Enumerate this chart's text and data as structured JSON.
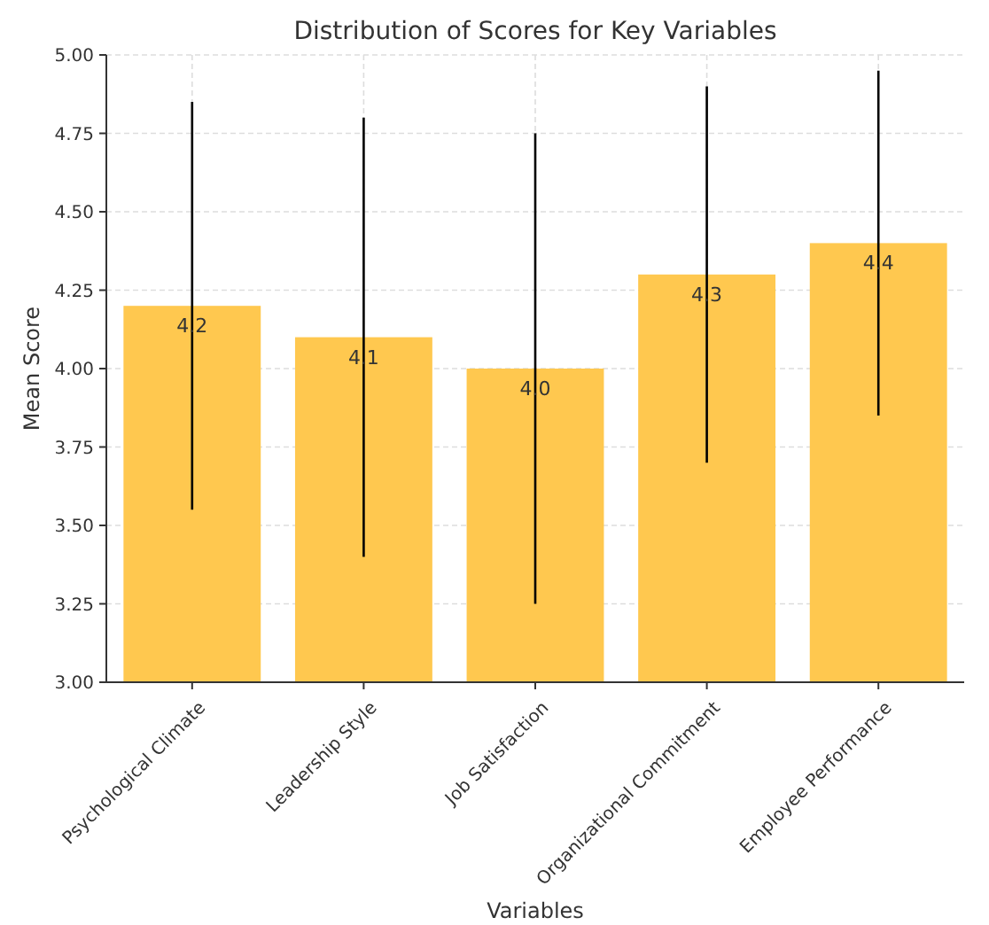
{
  "chart_data": {
    "type": "bar",
    "title": "Distribution of Scores for Key Variables",
    "xlabel": "Variables",
    "ylabel": "Mean Score",
    "categories": [
      "Psychological Climate",
      "Leadership Style",
      "Job Satisfaction",
      "Organizational Commitment",
      "Employee Performance"
    ],
    "values": [
      4.2,
      4.1,
      4.0,
      4.3,
      4.4
    ],
    "color": "#ffc84f",
    "errors": [
      0.65,
      0.7,
      0.75,
      0.6,
      0.55
    ],
    "ylim": [
      3,
      5
    ],
    "yticks": [
      {
        "value": 3,
        "label": "3.00"
      },
      {
        "value": 3.25,
        "label": "3.25"
      },
      {
        "value": 3.5,
        "label": "3.50"
      },
      {
        "value": 3.75,
        "label": "3.75"
      },
      {
        "value": 4,
        "label": "4.00"
      },
      {
        "value": 4.25,
        "label": "4.25"
      },
      {
        "value": 4.5,
        "label": "4.50"
      },
      {
        "value": 4.75,
        "label": "4.75"
      },
      {
        "value": 5,
        "label": "5.00"
      }
    ],
    "grid": true,
    "value_labels": [
      "4.2",
      "4.1",
      "4.0",
      "4.3",
      "4.4"
    ]
  }
}
